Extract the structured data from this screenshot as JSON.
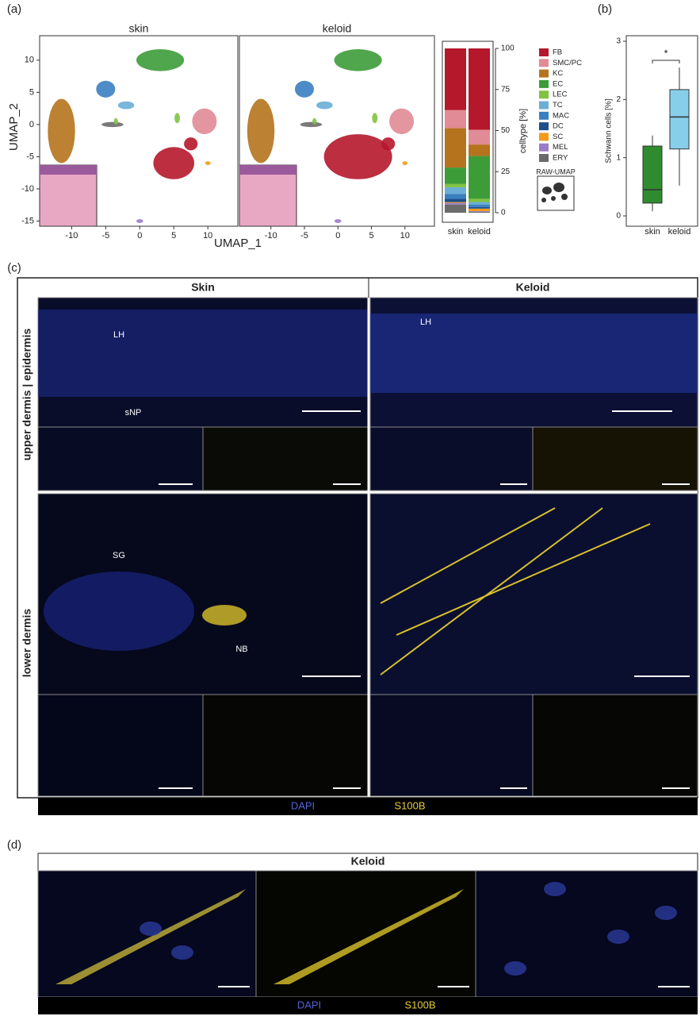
{
  "panel_a": {
    "label": "(a)",
    "umap": {
      "type": "scatter",
      "titles": [
        "skin",
        "keloid"
      ],
      "x_axis_label": "UMAP_1",
      "y_axis_label": "UMAP_2",
      "xlim": [
        -14.7,
        14.4
      ],
      "ylim": [
        -15.8,
        13.8
      ],
      "xticks": [
        -10,
        -5,
        0,
        5,
        10
      ],
      "yticks": [
        -15,
        -10,
        -5,
        0,
        5,
        10
      ]
    },
    "stacked_bar": {
      "type": "bar",
      "stacked": true,
      "categories": [
        "skin",
        "keloid"
      ],
      "y_axis_label": "celltype [%]",
      "ylim": [
        0,
        100
      ],
      "yticks": [
        0,
        25,
        50,
        75,
        100
      ],
      "series": [
        {
          "name": "FB",
          "color": "#b5172b",
          "values": [
            37.5,
            49.5
          ]
        },
        {
          "name": "SMC/PC",
          "color": "#e08b95",
          "values": [
            11,
            9
          ]
        },
        {
          "name": "KC",
          "color": "#b5731d",
          "values": [
            24,
            7
          ]
        },
        {
          "name": "EC",
          "color": "#3d9c38",
          "values": [
            10,
            26
          ]
        },
        {
          "name": "LEC",
          "color": "#7fc341",
          "values": [
            2,
            2
          ]
        },
        {
          "name": "TC",
          "color": "#6aaed6",
          "values": [
            4,
            1.5
          ]
        },
        {
          "name": "MAC",
          "color": "#3a7fc0",
          "values": [
            3,
            1.5
          ]
        },
        {
          "name": "DC",
          "color": "#1d4f8a",
          "values": [
            2,
            1
          ]
        },
        {
          "name": "SC",
          "color": "#f39b1b",
          "values": [
            0.5,
            1.5
          ]
        },
        {
          "name": "MEL",
          "color": "#9a7dc8",
          "values": [
            1,
            0.5
          ]
        },
        {
          "name": "ERY",
          "color": "#6b6b6b",
          "values": [
            5,
            0.5
          ]
        }
      ],
      "inset_label": "RAW-UMAP"
    }
  },
  "panel_b": {
    "label": "(b)",
    "type": "box",
    "categories": [
      "skin",
      "keloid"
    ],
    "y_axis_label": "Schwann cells [%]",
    "ylim": [
      0,
      3
    ],
    "yticks": [
      0,
      1,
      2,
      3
    ],
    "significance": "*",
    "boxes": [
      {
        "min": 0.08,
        "q1": 0.22,
        "median": 0.45,
        "q3": 1.2,
        "max": 1.38,
        "color": "#2e8b2e"
      },
      {
        "min": 0.52,
        "q1": 1.15,
        "median": 1.7,
        "q3": 2.17,
        "max": 2.55,
        "color": "#87ceeb"
      }
    ]
  },
  "panel_c": {
    "label": "(c)",
    "columns": [
      "Skin",
      "Keloid"
    ],
    "rows": [
      "upper dermis | epidermis",
      "lower dermis"
    ],
    "annotations": [
      "LH",
      "sNP",
      "SG",
      "NB",
      "LH"
    ],
    "channels": [
      "DAPI",
      "S100B"
    ]
  },
  "panel_d": {
    "label": "(d)",
    "title": "Keloid",
    "channels": [
      "DAPI",
      "S100B"
    ]
  }
}
